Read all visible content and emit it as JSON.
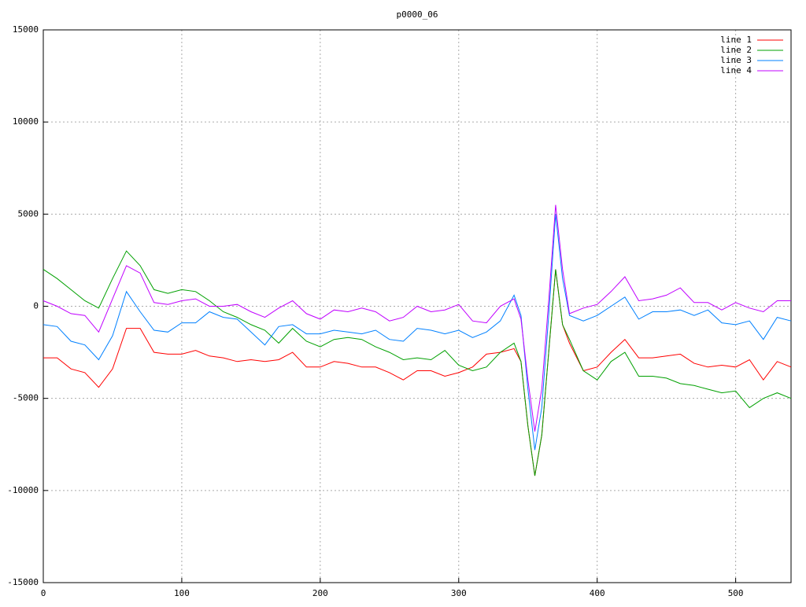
{
  "chart_data": {
    "type": "line",
    "title": "p0000_06",
    "x": [
      0,
      10,
      20,
      30,
      40,
      50,
      60,
      70,
      80,
      90,
      100,
      110,
      120,
      130,
      140,
      150,
      160,
      170,
      180,
      190,
      200,
      210,
      220,
      230,
      240,
      250,
      260,
      270,
      280,
      290,
      300,
      310,
      320,
      330,
      340,
      345,
      350,
      355,
      360,
      365,
      370,
      375,
      380,
      390,
      400,
      410,
      420,
      430,
      440,
      450,
      460,
      470,
      480,
      490,
      500,
      510,
      520,
      530,
      540
    ],
    "series": [
      {
        "name": "line 1",
        "color": "#ff0000",
        "values": [
          -2800,
          -2800,
          -3400,
          -3600,
          -4400,
          -3400,
          -1200,
          -1200,
          -2500,
          -2600,
          -2600,
          -2400,
          -2700,
          -2800,
          -3000,
          -2900,
          -3000,
          -2900,
          -2500,
          -3300,
          -3300,
          -3000,
          -3100,
          -3300,
          -3300,
          -3600,
          -4000,
          -3500,
          -3500,
          -3800,
          -3600,
          -3300,
          -2600,
          -2500,
          -2300,
          -3000,
          -6500,
          -9200,
          -7000,
          -2500,
          2000,
          -1000,
          -2000,
          -3500,
          -3300,
          -2500,
          -1800,
          -2800,
          -2800,
          -2700,
          -2600,
          -3100,
          -3300,
          -3200,
          -3300,
          -2900,
          -4000,
          -3000,
          -3300
        ]
      },
      {
        "name": "line 2",
        "color": "#00a000",
        "values": [
          2000,
          1500,
          900,
          300,
          -100,
          1500,
          3000,
          2200,
          900,
          700,
          900,
          800,
          300,
          -300,
          -600,
          -1000,
          -1300,
          -2000,
          -1200,
          -1900,
          -2200,
          -1800,
          -1700,
          -1800,
          -2200,
          -2500,
          -2900,
          -2800,
          -2900,
          -2400,
          -3200,
          -3500,
          -3300,
          -2500,
          -2000,
          -3000,
          -6500,
          -9200,
          -7000,
          -2500,
          2000,
          -1000,
          -1800,
          -3500,
          -4000,
          -3000,
          -2500,
          -3800,
          -3800,
          -3900,
          -4200,
          -4300,
          -4500,
          -4700,
          -4600,
          -5500,
          -5000,
          -4700,
          -5000
        ]
      },
      {
        "name": "line 3",
        "color": "#0080ff",
        "values": [
          -1000,
          -1100,
          -1900,
          -2100,
          -2900,
          -1600,
          800,
          -300,
          -1300,
          -1400,
          -900,
          -900,
          -300,
          -600,
          -700,
          -1400,
          -2100,
          -1100,
          -1000,
          -1500,
          -1500,
          -1300,
          -1400,
          -1500,
          -1300,
          -1800,
          -1900,
          -1200,
          -1300,
          -1500,
          -1300,
          -1700,
          -1400,
          -800,
          600,
          -500,
          -4500,
          -7800,
          -5500,
          -500,
          5000,
          1500,
          -500,
          -800,
          -500,
          0,
          500,
          -700,
          -300,
          -300,
          -200,
          -500,
          -200,
          -900,
          -1000,
          -800,
          -1800,
          -600,
          -800
        ]
      },
      {
        "name": "line 4",
        "color": "#c000ff",
        "values": [
          300,
          0,
          -400,
          -500,
          -1400,
          400,
          2200,
          1800,
          200,
          100,
          300,
          400,
          0,
          0,
          100,
          -300,
          -600,
          -100,
          300,
          -400,
          -700,
          -200,
          -300,
          -100,
          -300,
          -800,
          -600,
          0,
          -300,
          -200,
          100,
          -800,
          -900,
          0,
          400,
          -700,
          -4000,
          -6800,
          -4500,
          300,
          5500,
          2000,
          -400,
          -100,
          100,
          800,
          1600,
          300,
          400,
          600,
          1000,
          200,
          200,
          -200,
          200,
          -100,
          -300,
          300,
          300
        ]
      }
    ],
    "xlim": [
      0,
      540
    ],
    "xticks": [
      0,
      100,
      200,
      300,
      400,
      500
    ],
    "ylim": [
      -15000,
      15000
    ],
    "yticks": [
      -15000,
      -10000,
      -5000,
      0,
      5000,
      10000,
      15000
    ],
    "grid": true,
    "legend": "top-right"
  }
}
